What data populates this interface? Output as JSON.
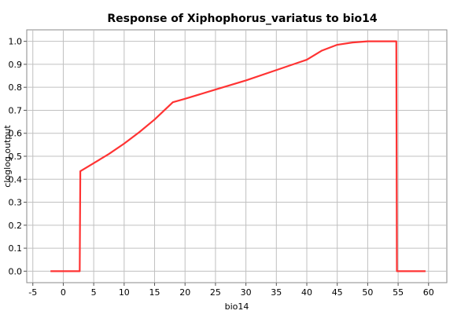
{
  "chart_data": {
    "type": "line",
    "title": "Response of Xiphophorus_variatus to bio14",
    "xlabel": "bio14",
    "ylabel": "cloglog output",
    "xlim": [
      -6,
      63
    ],
    "ylim": [
      -0.05,
      1.05
    ],
    "x_ticks": [
      -5,
      0,
      5,
      10,
      15,
      20,
      25,
      30,
      35,
      40,
      45,
      50,
      55,
      60
    ],
    "y_ticks": [
      0.0,
      0.1,
      0.2,
      0.3,
      0.4,
      0.5,
      0.6,
      0.7,
      0.8,
      0.9,
      1.0
    ],
    "x_tick_labels": [
      "-5",
      "0",
      "5",
      "10",
      "15",
      "20",
      "25",
      "30",
      "35",
      "40",
      "45",
      "50",
      "55",
      "60"
    ],
    "y_tick_labels": [
      "0.0",
      "0.1",
      "0.2",
      "0.3",
      "0.4",
      "0.5",
      "0.6",
      "0.7",
      "0.8",
      "0.9",
      "1.0"
    ],
    "grid": true,
    "line_color": "#ff3333",
    "series": [
      {
        "x": [
          -2.1,
          2.7,
          2.8,
          5,
          7.5,
          10,
          12.5,
          15,
          18,
          20,
          25,
          30,
          35,
          40,
          42.5,
          45,
          47.5,
          50,
          52.5,
          54.7,
          54.8,
          59.5
        ],
        "y": [
          0.0,
          0.0,
          0.435,
          0.47,
          0.51,
          0.555,
          0.605,
          0.66,
          0.735,
          0.75,
          0.79,
          0.83,
          0.875,
          0.92,
          0.96,
          0.985,
          0.995,
          1.0,
          1.0,
          1.0,
          0.0,
          0.0
        ]
      }
    ]
  }
}
